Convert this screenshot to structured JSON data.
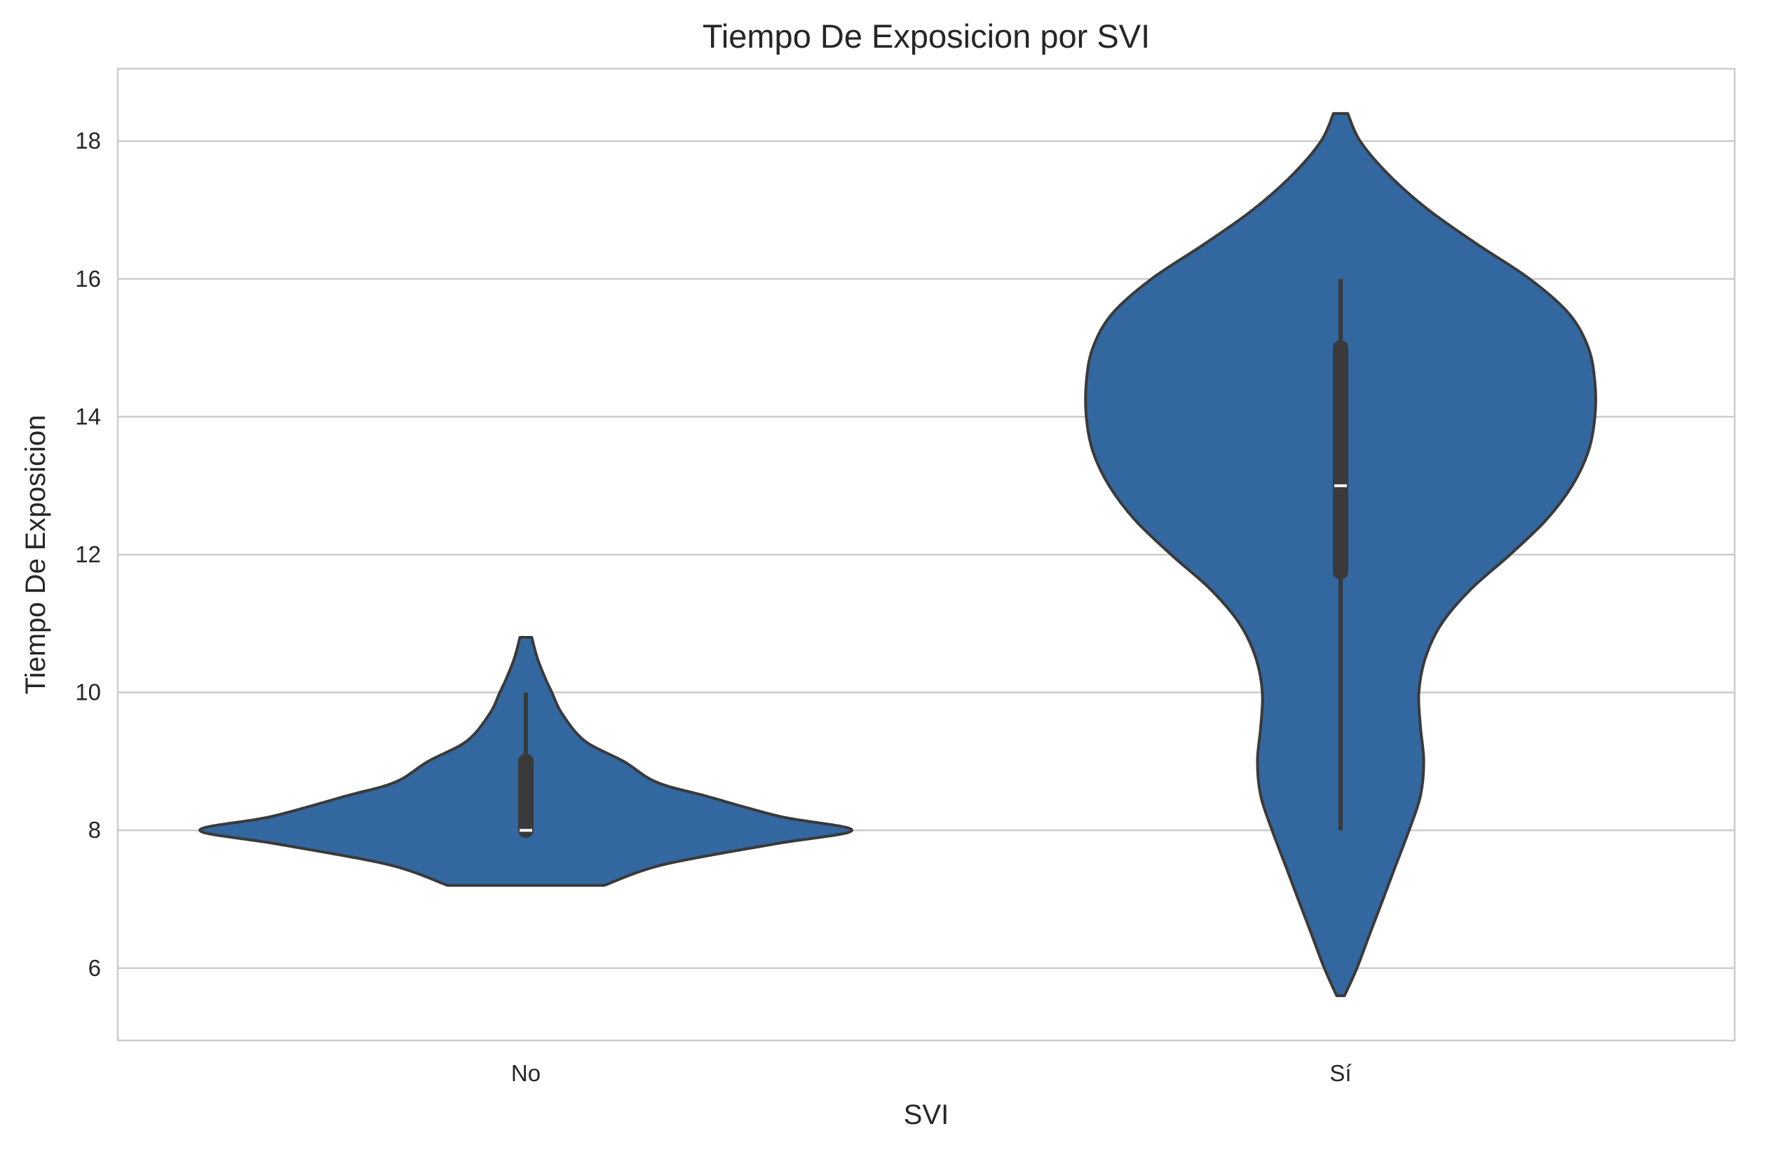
{
  "chart_data": {
    "type": "violin",
    "title": "Tiempo De Exposicion por SVI",
    "xlabel": "SVI",
    "ylabel": "Tiempo De Exposicion",
    "categories": [
      "No",
      "Sí"
    ],
    "ylim": [
      4.95,
      19.05
    ],
    "yticks": [
      6,
      8,
      10,
      12,
      14,
      16,
      18
    ],
    "grid": "horizontal",
    "violin_color": "#3367a0",
    "edge_color": "#3a3a3a",
    "gridline_color": "#cccccc",
    "violins": [
      {
        "category": "No",
        "density_range": [
          7.2,
          10.8
        ],
        "density_profile": [
          [
            7.2,
            0.24
          ],
          [
            7.5,
            0.42
          ],
          [
            7.8,
            0.76
          ],
          [
            8.0,
            1.0
          ],
          [
            8.2,
            0.78
          ],
          [
            8.5,
            0.55
          ],
          [
            8.7,
            0.4
          ],
          [
            9.0,
            0.3
          ],
          [
            9.3,
            0.18
          ],
          [
            9.7,
            0.11
          ],
          [
            10.0,
            0.08
          ],
          [
            10.2,
            0.06
          ],
          [
            10.5,
            0.035
          ],
          [
            10.8,
            0.018
          ]
        ],
        "box": {
          "whisker_low": 8.0,
          "q1": 8.0,
          "median": 8.0,
          "q3": 9.0,
          "whisker_high": 10.0
        }
      },
      {
        "category": "Sí",
        "density_range": [
          5.6,
          18.4
        ],
        "density_profile": [
          [
            5.6,
            0.012
          ],
          [
            6.0,
            0.05
          ],
          [
            6.5,
            0.09
          ],
          [
            7.0,
            0.13
          ],
          [
            7.5,
            0.17
          ],
          [
            8.0,
            0.21
          ],
          [
            8.5,
            0.245
          ],
          [
            9.0,
            0.255
          ],
          [
            9.5,
            0.245
          ],
          [
            10.0,
            0.24
          ],
          [
            10.5,
            0.26
          ],
          [
            11.0,
            0.31
          ],
          [
            11.5,
            0.4
          ],
          [
            12.0,
            0.52
          ],
          [
            12.5,
            0.63
          ],
          [
            13.0,
            0.71
          ],
          [
            13.5,
            0.76
          ],
          [
            14.0,
            0.78
          ],
          [
            14.5,
            0.78
          ],
          [
            15.0,
            0.76
          ],
          [
            15.5,
            0.7
          ],
          [
            16.0,
            0.58
          ],
          [
            16.5,
            0.42
          ],
          [
            17.0,
            0.27
          ],
          [
            17.5,
            0.15
          ],
          [
            18.0,
            0.06
          ],
          [
            18.4,
            0.022
          ]
        ],
        "box": {
          "whisker_low": 8.0,
          "q1": 11.75,
          "median": 13.0,
          "q3": 15.0,
          "whisker_high": 16.0
        }
      }
    ]
  }
}
